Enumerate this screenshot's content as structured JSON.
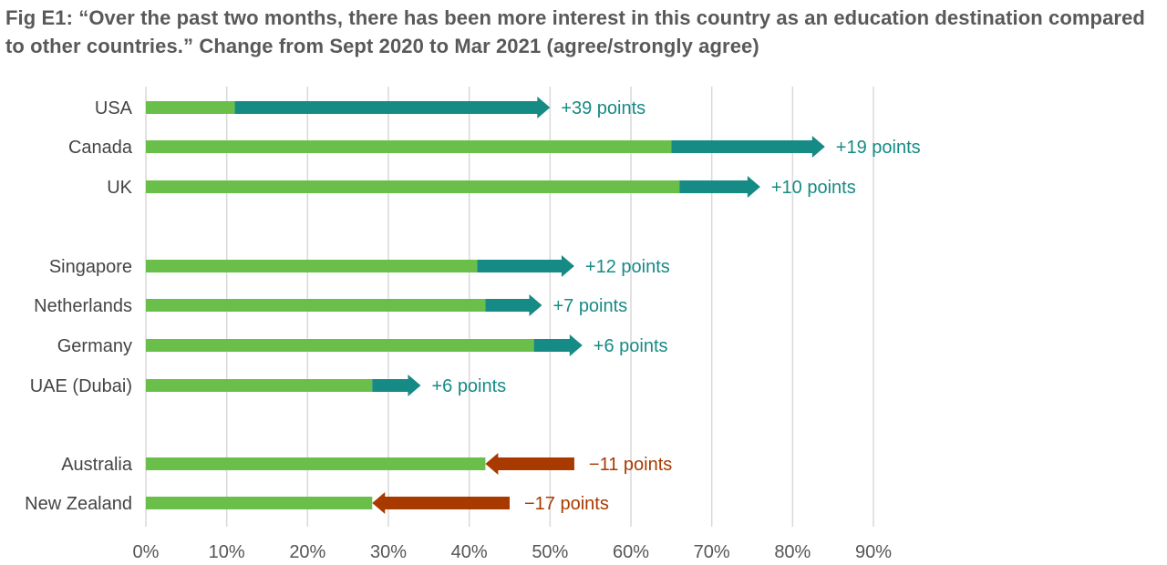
{
  "chart_data": {
    "type": "bar",
    "subtype": "arrow-change",
    "title": "Fig E1: “Over the past two months, there has been more interest in this country as an education destination compared to other countries.” Change from Sept 2020 to Mar 2021 (agree/strongly agree)",
    "xlim": [
      0,
      90
    ],
    "x_ticks": [
      "0%",
      "10%",
      "20%",
      "30%",
      "40%",
      "50%",
      "60%",
      "70%",
      "80%",
      "90%"
    ],
    "grid": "vertical",
    "colors": {
      "baseline": "#6abf4b",
      "increase": "#168a84",
      "decrease": "#a83a00"
    },
    "groups": [
      [
        {
          "country": "USA",
          "sept_2020": 11,
          "mar_2021": 50,
          "label": "+39 points"
        },
        {
          "country": "Canada",
          "sept_2020": 65,
          "mar_2021": 84,
          "label": "+19 points"
        },
        {
          "country": "UK",
          "sept_2020": 66,
          "mar_2021": 76,
          "label": "+10 points"
        }
      ],
      [
        {
          "country": "Singapore",
          "sept_2020": 41,
          "mar_2021": 53,
          "label": "+12 points"
        },
        {
          "country": "Netherlands",
          "sept_2020": 42,
          "mar_2021": 49,
          "label": "+7 points"
        },
        {
          "country": "Germany",
          "sept_2020": 48,
          "mar_2021": 54,
          "label": "+6 points"
        },
        {
          "country": "UAE (Dubai)",
          "sept_2020": 28,
          "mar_2021": 34,
          "label": "+6 points"
        }
      ],
      [
        {
          "country": "Australia",
          "sept_2020": 53,
          "mar_2021": 42,
          "label": "−11 points"
        },
        {
          "country": "New Zealand",
          "sept_2020": 45,
          "mar_2021": 28,
          "label": "−17 points"
        }
      ]
    ]
  }
}
